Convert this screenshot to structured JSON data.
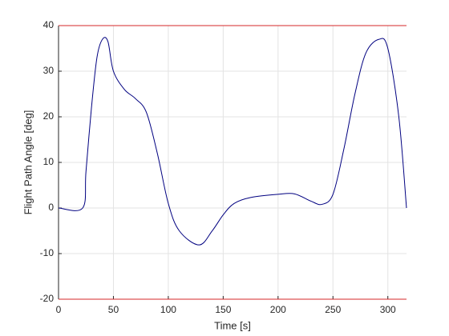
{
  "chart_data": {
    "type": "line",
    "xlabel": "Time [s]",
    "ylabel": "Flight Path Angle [deg]",
    "xlim": [
      0,
      317
    ],
    "ylim": [
      -20,
      40
    ],
    "xticks": [
      0,
      50,
      100,
      150,
      200,
      250,
      300
    ],
    "yticks": [
      -20,
      -10,
      0,
      10,
      20,
      30,
      40
    ],
    "grid": true,
    "series": [
      {
        "color": "#000080",
        "x": [
          0,
          22,
          25,
          30,
          35,
          40,
          45,
          50,
          60,
          70,
          80,
          90,
          100,
          110,
          128,
          140,
          150,
          160,
          175,
          200,
          215,
          230,
          240,
          250,
          260,
          270,
          280,
          292,
          300,
          310,
          317
        ],
        "values": [
          0,
          0,
          8,
          22,
          33,
          37,
          36.5,
          30,
          26,
          24,
          21,
          12,
          1,
          -5,
          -8.1,
          -5,
          -1.5,
          1,
          2.3,
          3,
          3.1,
          1.5,
          0.8,
          3,
          13,
          25,
          34,
          37,
          35,
          20,
          0
        ]
      },
      {
        "color": "#d62728",
        "x": [
          0,
          317
        ],
        "values": [
          40,
          40
        ]
      },
      {
        "color": "#d62728",
        "x": [
          0,
          317
        ],
        "values": [
          -20,
          -20
        ]
      }
    ]
  }
}
